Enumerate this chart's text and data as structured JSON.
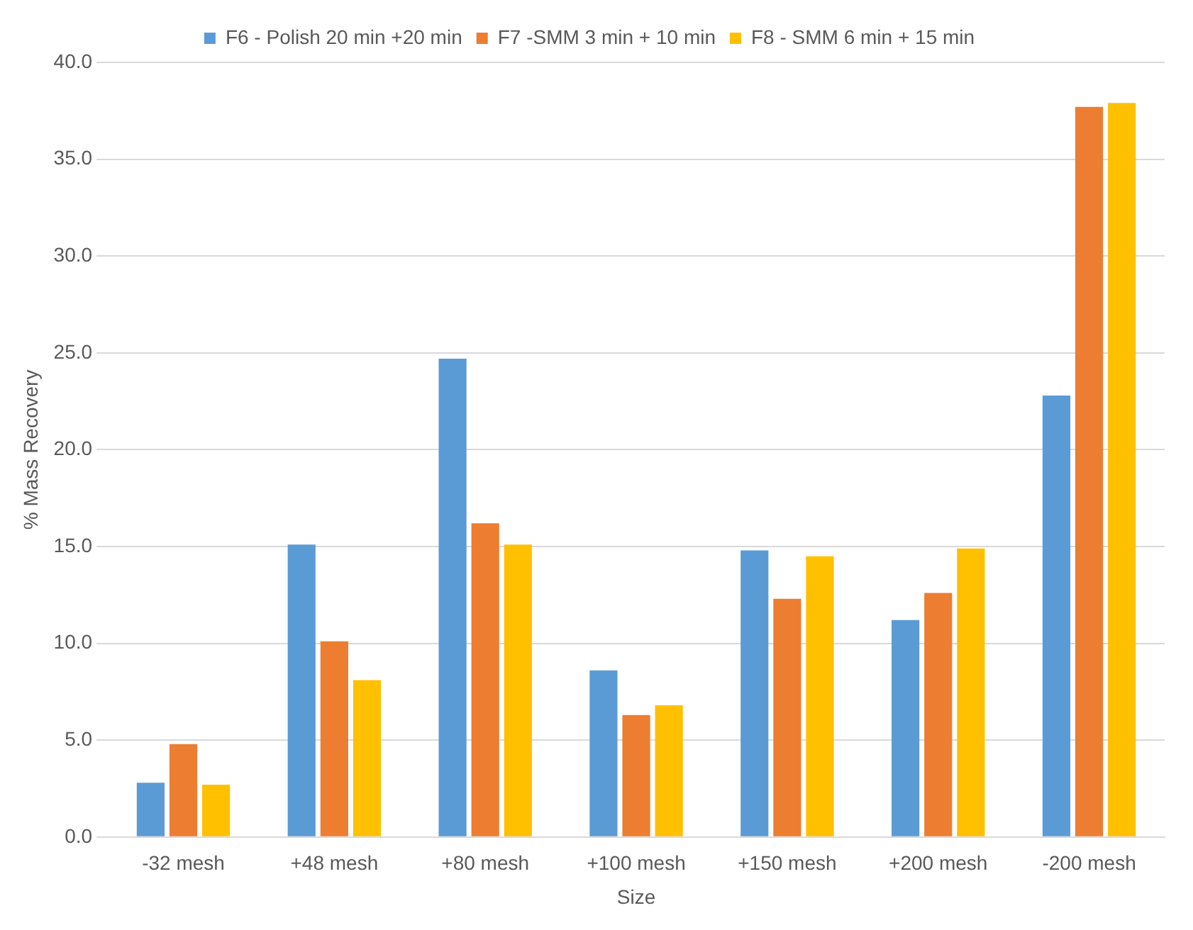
{
  "chart_data": {
    "type": "bar",
    "xlabel": "Size",
    "ylabel": "% Mass Recovery",
    "categories": [
      "-32 mesh",
      "+48 mesh",
      "+80 mesh",
      "+100 mesh",
      "+150 mesh",
      "+200 mesh",
      "-200 mesh"
    ],
    "series": [
      {
        "name": "F6 - Polish 20 min +20 min",
        "color": "#5b9bd5",
        "values": [
          2.8,
          15.1,
          24.7,
          8.6,
          14.8,
          11.2,
          22.8
        ]
      },
      {
        "name": "F7 -SMM 3 min + 10 min",
        "color": "#ed7d31",
        "values": [
          4.8,
          10.1,
          16.2,
          6.3,
          12.3,
          12.6,
          37.7
        ]
      },
      {
        "name": "F8 - SMM 6 min + 15 min",
        "color": "#ffc000",
        "values": [
          2.7,
          8.1,
          15.1,
          6.8,
          14.5,
          14.9,
          37.9
        ]
      }
    ],
    "ylim": [
      0,
      40
    ],
    "yticks": [
      {
        "value": 0,
        "label": "0.0"
      },
      {
        "value": 5,
        "label": "5.0"
      },
      {
        "value": 10,
        "label": "10.0"
      },
      {
        "value": 15,
        "label": "15.0"
      },
      {
        "value": 20,
        "label": "20.0"
      },
      {
        "value": 25,
        "label": "25.0"
      },
      {
        "value": 30,
        "label": "30.0"
      },
      {
        "value": 35,
        "label": "35.0"
      },
      {
        "value": 40,
        "label": "40.0"
      }
    ],
    "grid": "y",
    "legend": "top"
  }
}
